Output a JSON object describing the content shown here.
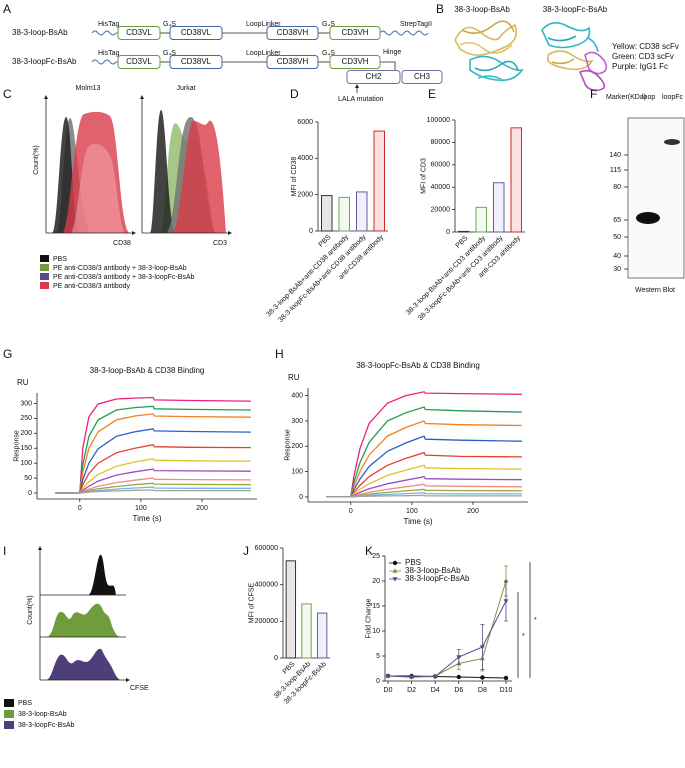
{
  "panel_labels": [
    "A",
    "B",
    "C",
    "D",
    "E",
    "F",
    "G",
    "H",
    "I",
    "J",
    "K"
  ],
  "diagram": {
    "rows": [
      {
        "name": "38-3-loop-BsAb",
        "domains": [
          "CD3VL",
          "CD38VL",
          "CD38VH",
          "CD3VH"
        ],
        "linkers": [
          "HisTag",
          "G₄S",
          "LoopLinker",
          "G₄S",
          "StrepTagII"
        ]
      },
      {
        "name": "38-3-loopFc-BsAb",
        "domains": [
          "CD3VL",
          "CD38VL",
          "CD38VH",
          "CD3VH",
          "CH2",
          "CH3"
        ],
        "linkers": [
          "HisTag",
          "G₄S",
          "LoopLinker",
          "G₄S",
          "Hinge"
        ]
      }
    ],
    "note": "LALA mutation"
  },
  "structures": {
    "titles": [
      "38-3-loop-BsAb",
      "38-3-loopFc-BsAb"
    ],
    "legend": [
      "Yellow: CD38 scFv",
      "Green: CD3 scFv",
      "Purple: IgG1 Fc"
    ]
  },
  "flow_c": {
    "titles": [
      "Molm13",
      "Jurkat"
    ],
    "y_label": "Count(%)",
    "x_labels": [
      "CD38",
      "CD3"
    ],
    "legend": [
      {
        "name": "PBS",
        "color": "#111111"
      },
      {
        "name": "PE anti-CD38/3 antibody + 38-3-loop-BsAb",
        "color": "#6f9c3d"
      },
      {
        "name": "PE anti-CD38/3 antibody + 38-3-loopFc-BsAb",
        "color": "#5b4a8b"
      },
      {
        "name": "PE anti-CD38/3 antibody",
        "color": "#d93b48"
      }
    ]
  },
  "blot": {
    "marker_title": "Marker(KDa)",
    "lanes": [
      "loop",
      "loopFc"
    ],
    "markers": [
      140,
      115,
      80,
      65,
      50,
      40,
      30
    ],
    "caption": "Western Blot"
  },
  "flow_i": {
    "y_label": "Count(%)",
    "x_label": "CFSE",
    "legend": [
      {
        "name": "PBS",
        "color": "#111111"
      },
      {
        "name": "38-3-loop-BsAb",
        "color": "#6f9c3d"
      },
      {
        "name": "38-3-loopFc-BsAb",
        "color": "#4e3f7a"
      }
    ]
  },
  "chart_data": [
    {
      "type": "bar",
      "categories": [
        "PBS",
        "38-3-loop-BsAb+anti-CD38 antibody",
        "38-3-loopFc-BsAb+anti-CD38 antibody",
        "anti-CD38 antibody"
      ],
      "values": [
        1950,
        1850,
        2150,
        5500
      ],
      "colors": [
        "#333333",
        "#6aa84f",
        "#6a5a9c",
        "#d62728"
      ],
      "fills": [
        "#e6e6e6",
        "#f3f9ee",
        "#f1effa",
        "#fbe2e2"
      ],
      "ylabel": "MFI of CD38",
      "ylim": [
        0,
        6000
      ],
      "yticks": [
        0,
        2000,
        4000,
        6000
      ]
    },
    {
      "type": "bar",
      "categories": [
        "PBS",
        "38-3-loop-BsAb+anti-CD3 antibody",
        "38-3-loopFc-BsAb+anti-CD3 antibody",
        "anti-CD3 antibody"
      ],
      "values": [
        500,
        22000,
        44000,
        93000
      ],
      "colors": [
        "#333333",
        "#6aa84f",
        "#6a5a9c",
        "#d62728"
      ],
      "fills": [
        "#e6e6e6",
        "#f3f9ee",
        "#f1effa",
        "#fbe2e2"
      ],
      "ylabel": "MFI of CD3",
      "ylim": [
        0,
        100000
      ],
      "yticks": [
        0,
        20000,
        40000,
        60000,
        80000,
        100000
      ]
    },
    {
      "type": "line",
      "title": "38-3-loop-BsAb & CD38 Binding",
      "y_unit": "RU",
      "ylabel": "Response",
      "xlabel": "Time (s)",
      "x": [
        -40,
        0,
        5,
        15,
        30,
        60,
        90,
        120,
        122,
        180,
        280
      ],
      "xlim": [
        -70,
        290
      ],
      "xticks": [
        0,
        100,
        200
      ],
      "ylim": [
        -20,
        335
      ],
      "yticks": [
        0,
        50,
        100,
        150,
        200,
        250,
        300
      ],
      "series": [
        {
          "color": "#e8237d",
          "values": [
            0,
            0,
            150,
            255,
            298,
            315,
            318,
            320,
            312,
            310,
            308
          ]
        },
        {
          "color": "#1f9e4a",
          "values": [
            0,
            0,
            95,
            190,
            245,
            278,
            286,
            290,
            282,
            280,
            278
          ]
        },
        {
          "color": "#f28022",
          "values": [
            0,
            0,
            70,
            150,
            205,
            245,
            258,
            265,
            258,
            256,
            254
          ]
        },
        {
          "color": "#2a62c4",
          "values": [
            0,
            0,
            45,
            100,
            148,
            190,
            205,
            215,
            208,
            206,
            204
          ]
        },
        {
          "color": "#e4402f",
          "values": [
            0,
            0,
            28,
            65,
            100,
            135,
            150,
            162,
            155,
            153,
            152
          ]
        },
        {
          "color": "#e0c12a",
          "values": [
            0,
            0,
            15,
            38,
            62,
            90,
            104,
            115,
            110,
            108,
            107
          ]
        },
        {
          "color": "#9a4dc4",
          "values": [
            0,
            0,
            9,
            23,
            40,
            60,
            71,
            80,
            75,
            74,
            73
          ]
        },
        {
          "color": "#ef8d8d",
          "values": [
            0,
            0,
            5,
            13,
            23,
            35,
            43,
            50,
            46,
            45,
            44
          ]
        },
        {
          "color": "#9ba93a",
          "values": [
            0,
            0,
            3,
            8,
            14,
            22,
            28,
            33,
            30,
            29,
            28
          ]
        },
        {
          "color": "#6cb5e6",
          "values": [
            0,
            0,
            2,
            5,
            8,
            13,
            17,
            20,
            17,
            16,
            16
          ]
        },
        {
          "color": "#a0a0a0",
          "values": [
            0,
            0,
            1,
            3,
            5,
            7,
            9,
            10,
            8,
            8,
            8
          ]
        }
      ]
    },
    {
      "type": "line",
      "title": "38-3-loopFc-BsAb & CD38 Binding",
      "y_unit": "RU",
      "ylabel": "Response",
      "xlabel": "Time (s)",
      "x": [
        -40,
        0,
        5,
        15,
        30,
        60,
        90,
        120,
        122,
        180,
        280
      ],
      "xlim": [
        -70,
        290
      ],
      "xticks": [
        0,
        100,
        200
      ],
      "ylim": [
        -20,
        430
      ],
      "yticks": [
        0,
        100,
        200,
        300,
        400
      ],
      "series": [
        {
          "color": "#e8237d",
          "values": [
            0,
            0,
            80,
            190,
            290,
            370,
            400,
            415,
            410,
            408,
            405
          ]
        },
        {
          "color": "#1f9e4a",
          "values": [
            0,
            0,
            55,
            135,
            215,
            300,
            332,
            355,
            345,
            340,
            335
          ]
        },
        {
          "color": "#f28022",
          "values": [
            0,
            0,
            40,
            100,
            165,
            240,
            274,
            300,
            290,
            285,
            282
          ]
        },
        {
          "color": "#2a62c4",
          "values": [
            0,
            0,
            28,
            70,
            120,
            180,
            213,
            240,
            228,
            224,
            220
          ]
        },
        {
          "color": "#e4402f",
          "values": [
            0,
            0,
            18,
            45,
            80,
            125,
            152,
            175,
            165,
            160,
            158
          ]
        },
        {
          "color": "#e0c12a",
          "values": [
            0,
            0,
            12,
            30,
            52,
            85,
            106,
            125,
            115,
            112,
            110
          ]
        },
        {
          "color": "#9a4dc4",
          "values": [
            0,
            0,
            7,
            18,
            32,
            52,
            66,
            80,
            72,
            70,
            68
          ]
        },
        {
          "color": "#ef8d8d",
          "values": [
            0,
            0,
            4,
            10,
            18,
            30,
            40,
            50,
            44,
            42,
            40
          ]
        },
        {
          "color": "#9ba93a",
          "values": [
            0,
            0,
            2,
            6,
            11,
            18,
            24,
            30,
            26,
            25,
            24
          ]
        },
        {
          "color": "#6cb5e6",
          "values": [
            0,
            0,
            1,
            3,
            6,
            10,
            13,
            16,
            13,
            12,
            12
          ]
        },
        {
          "color": "#a0a0a0",
          "values": [
            0,
            0,
            1,
            2,
            3,
            4,
            5,
            6,
            4,
            4,
            4
          ]
        }
      ]
    },
    {
      "type": "bar",
      "categories": [
        "PBS",
        "38-3-loop-BsAb",
        "38-3-loopFc-BsAb"
      ],
      "values": [
        530000,
        295000,
        245000
      ],
      "colors": [
        "#333333",
        "#6aa84f",
        "#6a5a9c"
      ],
      "fills": [
        "#e6e6e6",
        "#f3f9ee",
        "#f1effa"
      ],
      "ylabel": "MFI of CFSE",
      "ylim": [
        0,
        600000
      ],
      "yticks": [
        0,
        200000,
        400000,
        600000
      ]
    },
    {
      "type": "line",
      "categories": [
        "D0",
        "D2",
        "D4",
        "D6",
        "D8",
        "D10"
      ],
      "ylabel": "Fold Change",
      "ylim": [
        0,
        25
      ],
      "yticks": [
        0,
        5,
        10,
        15,
        20,
        25
      ],
      "series": [
        {
          "name": "PBS",
          "color": "#111111",
          "marker": "circle",
          "values": [
            1,
            1,
            0.9,
            0.8,
            0.7,
            0.6
          ],
          "errors": [
            0.1,
            0.1,
            0.1,
            0.1,
            0.1,
            0.1
          ]
        },
        {
          "name": "38-3-loop-BsAb",
          "color": "#6f9c3d",
          "marker": "triangle",
          "values": [
            1,
            0.8,
            1,
            3.5,
            4.5,
            20
          ],
          "errors": [
            0.1,
            0.2,
            0.2,
            1.2,
            2.5,
            3
          ]
        },
        {
          "name": "38-3-loopFc-BsAb",
          "color": "#5b4a8b",
          "marker": "down",
          "values": [
            1,
            0.8,
            0.9,
            4.8,
            6.8,
            16
          ],
          "errors": [
            0.1,
            0.2,
            0.2,
            1.5,
            4.5,
            4
          ]
        }
      ],
      "annotations": [
        "*",
        "*"
      ]
    }
  ]
}
